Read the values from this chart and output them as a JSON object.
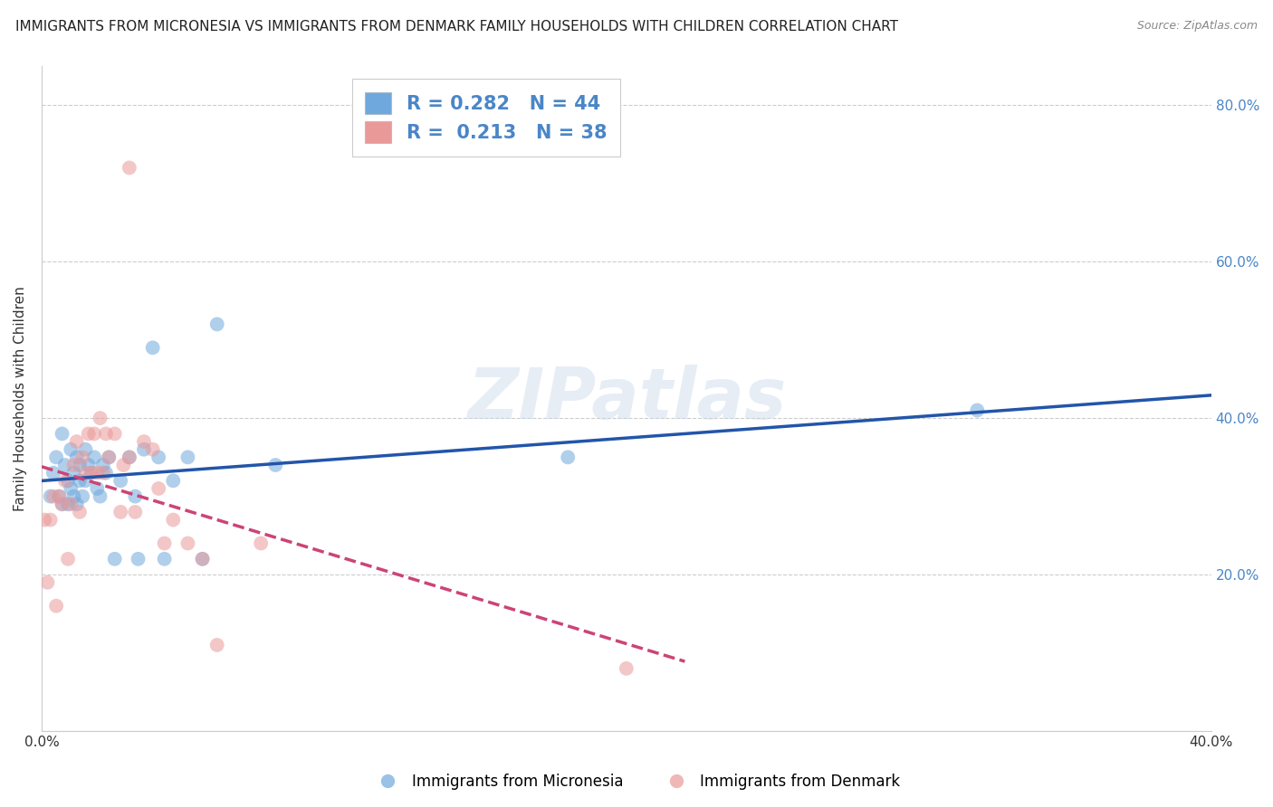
{
  "title": "IMMIGRANTS FROM MICRONESIA VS IMMIGRANTS FROM DENMARK FAMILY HOUSEHOLDS WITH CHILDREN CORRELATION CHART",
  "source": "Source: ZipAtlas.com",
  "ylabel": "Family Households with Children",
  "xlim": [
    0.0,
    0.4
  ],
  "ylim": [
    0.0,
    0.85
  ],
  "xticks": [
    0.0,
    0.1,
    0.2,
    0.3,
    0.4
  ],
  "yticks": [
    0.0,
    0.2,
    0.4,
    0.6,
    0.8
  ],
  "xticklabels": [
    "0.0%",
    "",
    "",
    "",
    "40.0%"
  ],
  "yticklabels": [
    "",
    "20.0%",
    "40.0%",
    "60.0%",
    "80.0%"
  ],
  "micronesia_x": [
    0.003,
    0.004,
    0.005,
    0.006,
    0.007,
    0.007,
    0.008,
    0.009,
    0.009,
    0.01,
    0.01,
    0.011,
    0.011,
    0.012,
    0.012,
    0.013,
    0.013,
    0.014,
    0.015,
    0.015,
    0.016,
    0.017,
    0.018,
    0.019,
    0.02,
    0.021,
    0.022,
    0.023,
    0.025,
    0.027,
    0.03,
    0.032,
    0.033,
    0.035,
    0.038,
    0.04,
    0.042,
    0.045,
    0.05,
    0.055,
    0.06,
    0.08,
    0.18,
    0.32
  ],
  "micronesia_y": [
    0.3,
    0.33,
    0.35,
    0.3,
    0.38,
    0.29,
    0.34,
    0.32,
    0.29,
    0.36,
    0.31,
    0.3,
    0.33,
    0.35,
    0.29,
    0.34,
    0.32,
    0.3,
    0.36,
    0.32,
    0.34,
    0.33,
    0.35,
    0.31,
    0.3,
    0.34,
    0.33,
    0.35,
    0.22,
    0.32,
    0.35,
    0.3,
    0.22,
    0.36,
    0.49,
    0.35,
    0.22,
    0.32,
    0.35,
    0.22,
    0.52,
    0.34,
    0.35,
    0.41
  ],
  "denmark_x": [
    0.001,
    0.002,
    0.003,
    0.004,
    0.005,
    0.006,
    0.007,
    0.008,
    0.009,
    0.01,
    0.011,
    0.012,
    0.013,
    0.014,
    0.015,
    0.016,
    0.017,
    0.018,
    0.019,
    0.02,
    0.021,
    0.022,
    0.023,
    0.025,
    0.027,
    0.028,
    0.03,
    0.032,
    0.035,
    0.038,
    0.04,
    0.042,
    0.045,
    0.05,
    0.055,
    0.06,
    0.075,
    0.2
  ],
  "denmark_y": [
    0.27,
    0.19,
    0.27,
    0.3,
    0.16,
    0.3,
    0.29,
    0.32,
    0.22,
    0.29,
    0.34,
    0.37,
    0.28,
    0.35,
    0.33,
    0.38,
    0.33,
    0.38,
    0.33,
    0.4,
    0.33,
    0.38,
    0.35,
    0.38,
    0.28,
    0.34,
    0.35,
    0.28,
    0.37,
    0.36,
    0.31,
    0.24,
    0.27,
    0.24,
    0.22,
    0.11,
    0.24,
    0.08
  ],
  "micronesia_color": "#6fa8dc",
  "denmark_color": "#ea9999",
  "micronesia_line_color": "#2255aa",
  "denmark_line_color": "#cc4477",
  "R_micronesia": 0.282,
  "N_micronesia": 44,
  "R_denmark": 0.213,
  "N_denmark": 38,
  "legend_micronesia": "Immigrants from Micronesia",
  "legend_denmark": "Immigrants from Denmark",
  "watermark": "ZIPatlas",
  "background_color": "#ffffff",
  "grid_color": "#cccccc",
  "title_fontsize": 11,
  "tick_label_color_right": "#4a86c8",
  "extra_pink_high": [
    0.03
  ],
  "extra_pink_high_y": [
    0.72
  ]
}
